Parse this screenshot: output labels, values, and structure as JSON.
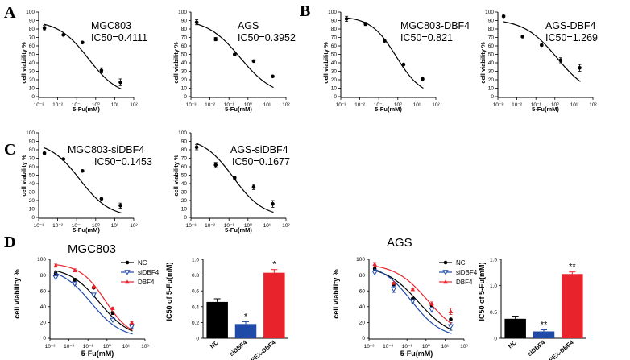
{
  "colors": {
    "black": "#000000",
    "blue": "#1f4aa8",
    "red": "#e8232b"
  },
  "panel_labels": {
    "A": "A",
    "B": "B",
    "C": "C",
    "D": "D"
  },
  "chart_data": [
    {
      "id": "A1",
      "type": "line",
      "title": "MGC803",
      "subtitle": "IC50=0.4111",
      "xlabel": "5-Fu(mM)",
      "ylabel": "cell viability %",
      "xscale": "log",
      "xlim": [
        0.001,
        100
      ],
      "ylim": [
        0,
        100
      ],
      "ic50": 0.4111,
      "hill": 0.55,
      "top": 90,
      "yticks": [
        0,
        10,
        20,
        30,
        40,
        50,
        60,
        70,
        80,
        90,
        100
      ],
      "xtick_labels": [
        "10⁻³",
        "10⁻²",
        "10⁻¹",
        "10⁰",
        "10¹",
        "10²"
      ],
      "points": [
        {
          "x": 0.002,
          "y": 81,
          "err": 3
        },
        {
          "x": 0.02,
          "y": 73,
          "err": 1
        },
        {
          "x": 0.2,
          "y": 64,
          "err": 1
        },
        {
          "x": 2,
          "y": 31,
          "err": 3
        },
        {
          "x": 20,
          "y": 17,
          "err": 4
        }
      ]
    },
    {
      "id": "A2",
      "type": "line",
      "title": "AGS",
      "subtitle": "IC50=0.3952",
      "xlabel": "5-Fu(mM)",
      "ylabel": "cell viability %",
      "xscale": "log",
      "xlim": [
        0.001,
        100
      ],
      "ylim": [
        0,
        100
      ],
      "ic50": 0.3952,
      "hill": 0.5,
      "top": 92,
      "yticks": [
        0,
        10,
        20,
        30,
        40,
        50,
        60,
        70,
        80,
        90,
        100
      ],
      "xtick_labels": [
        "10⁻³",
        "10⁻²",
        "10⁻¹",
        "10⁰",
        "10¹",
        "10²"
      ],
      "points": [
        {
          "x": 0.002,
          "y": 88,
          "err": 3
        },
        {
          "x": 0.02,
          "y": 68,
          "err": 2
        },
        {
          "x": 0.2,
          "y": 50,
          "err": 1
        },
        {
          "x": 2,
          "y": 42,
          "err": 1
        },
        {
          "x": 20,
          "y": 24,
          "err": 1
        }
      ]
    },
    {
      "id": "B1",
      "type": "line",
      "title": "MGC803-DBF4",
      "subtitle": "IC50=0.821",
      "xlabel": "5-Fu(mM)",
      "ylabel": "cell viability %",
      "xscale": "log",
      "xlim": [
        0.001,
        100
      ],
      "ylim": [
        0,
        100
      ],
      "ic50": 0.821,
      "hill": 0.65,
      "top": 95,
      "yticks": [
        0,
        10,
        20,
        30,
        40,
        50,
        60,
        70,
        80,
        90,
        100
      ],
      "xtick_labels": [
        "10⁻³",
        "10⁻²",
        "10⁻¹",
        "10⁰",
        "10¹",
        "10²"
      ],
      "points": [
        {
          "x": 0.002,
          "y": 92,
          "err": 3
        },
        {
          "x": 0.02,
          "y": 86,
          "err": 2
        },
        {
          "x": 0.2,
          "y": 66,
          "err": 1
        },
        {
          "x": 2,
          "y": 38,
          "err": 1
        },
        {
          "x": 20,
          "y": 21,
          "err": 1
        }
      ]
    },
    {
      "id": "B2",
      "type": "line",
      "title": "AGS-DBF4",
      "subtitle": "IC50=1.269",
      "xlabel": "5-Fu(mM)",
      "ylabel": "cell viability %",
      "xscale": "log",
      "xlim": [
        0.001,
        100
      ],
      "ylim": [
        0,
        100
      ],
      "ic50": 1.269,
      "hill": 0.5,
      "top": 92,
      "yticks": [
        0,
        10,
        20,
        30,
        40,
        50,
        60,
        70,
        80,
        90,
        100
      ],
      "xtick_labels": [
        "10⁻³",
        "10⁻²",
        "10⁻¹",
        "10⁰",
        "10¹",
        "10²"
      ],
      "points": [
        {
          "x": 0.002,
          "y": 95,
          "err": 1
        },
        {
          "x": 0.02,
          "y": 71,
          "err": 1
        },
        {
          "x": 0.2,
          "y": 61,
          "err": 1
        },
        {
          "x": 2,
          "y": 43,
          "err": 3
        },
        {
          "x": 20,
          "y": 34,
          "err": 4
        }
      ]
    },
    {
      "id": "C1",
      "type": "line",
      "title": "MGC803-siDBF4",
      "subtitle": "IC50=0.1453",
      "xlabel": "5-Fu(mM)",
      "ylabel": "cell viability %",
      "xscale": "log",
      "xlim": [
        0.001,
        100
      ],
      "ylim": [
        0,
        100
      ],
      "ic50": 0.1453,
      "hill": 0.55,
      "top": 90,
      "yticks": [
        0,
        10,
        20,
        30,
        40,
        50,
        60,
        70,
        80,
        90,
        100
      ],
      "xtick_labels": [
        "10⁻³",
        "10⁻²",
        "10⁻¹",
        "10⁰",
        "10¹",
        "10²"
      ],
      "points": [
        {
          "x": 0.002,
          "y": 76,
          "err": 1
        },
        {
          "x": 0.02,
          "y": 69,
          "err": 1
        },
        {
          "x": 0.2,
          "y": 55,
          "err": 1
        },
        {
          "x": 2,
          "y": 22,
          "err": 1
        },
        {
          "x": 20,
          "y": 14,
          "err": 3
        }
      ]
    },
    {
      "id": "C2",
      "type": "line",
      "title": "AGS-siDBF4",
      "subtitle": "IC50=0.1677",
      "xlabel": "5-Fu(mM)",
      "ylabel": "cell viability %",
      "xscale": "log",
      "xlim": [
        0.001,
        100
      ],
      "ylim": [
        0,
        100
      ],
      "ic50": 0.1677,
      "hill": 0.55,
      "top": 95,
      "yticks": [
        0,
        10,
        20,
        30,
        40,
        50,
        60,
        70,
        80,
        90,
        100
      ],
      "xtick_labels": [
        "10⁻³",
        "10⁻²",
        "10⁻¹",
        "10⁰",
        "10¹",
        "10²"
      ],
      "points": [
        {
          "x": 0.002,
          "y": 83,
          "err": 3
        },
        {
          "x": 0.02,
          "y": 62,
          "err": 3
        },
        {
          "x": 0.2,
          "y": 47,
          "err": 2
        },
        {
          "x": 2,
          "y": 36,
          "err": 3
        },
        {
          "x": 20,
          "y": 16,
          "err": 4
        }
      ]
    },
    {
      "id": "D1",
      "type": "line",
      "title": "MGC803",
      "xlabel": "5-Fu(mM)",
      "ylabel": "cell viability %",
      "xscale": "log",
      "xlim": [
        0.001,
        100
      ],
      "ylim": [
        0,
        100
      ],
      "yticks": [
        0,
        20,
        40,
        60,
        80,
        100
      ],
      "xtick_labels": [
        "10⁻³",
        "10⁻²",
        "10⁻¹",
        "10⁰",
        "10¹",
        "10²"
      ],
      "legend": "top-right",
      "series": [
        {
          "name": "NC",
          "color": "#000000",
          "marker": "circle",
          "ic50": 0.4111,
          "hill": 0.55,
          "top": 90,
          "points": [
            {
              "x": 0.002,
              "y": 82,
              "err": 2
            },
            {
              "x": 0.02,
              "y": 74,
              "err": 2
            },
            {
              "x": 0.2,
              "y": 64,
              "err": 1
            },
            {
              "x": 2,
              "y": 32,
              "err": 2
            },
            {
              "x": 20,
              "y": 16,
              "err": 3
            }
          ]
        },
        {
          "name": "siDBF4",
          "color": "#1f4aa8",
          "marker": "triangle-down",
          "ic50": 0.1453,
          "hill": 0.55,
          "top": 90,
          "points": [
            {
              "x": 0.002,
              "y": 77,
              "err": 2
            },
            {
              "x": 0.02,
              "y": 69,
              "err": 1
            },
            {
              "x": 0.2,
              "y": 55,
              "err": 1
            },
            {
              "x": 2,
              "y": 23,
              "err": 1
            },
            {
              "x": 20,
              "y": 15,
              "err": 2
            }
          ]
        },
        {
          "name": "DBF4",
          "color": "#e8232b",
          "marker": "triangle-up",
          "ic50": 0.821,
          "hill": 0.65,
          "top": 95,
          "points": [
            {
              "x": 0.002,
              "y": 92,
              "err": 2
            },
            {
              "x": 0.02,
              "y": 86,
              "err": 2
            },
            {
              "x": 0.2,
              "y": 65,
              "err": 1
            },
            {
              "x": 2,
              "y": 38,
              "err": 1
            },
            {
              "x": 20,
              "y": 20,
              "err": 1
            }
          ]
        }
      ]
    },
    {
      "id": "D2",
      "type": "bar",
      "ylabel": "IC50 of 5-Fu(mM)",
      "categories": [
        "NC",
        "siDBF4",
        "PEX-DBF4"
      ],
      "values": [
        0.46,
        0.18,
        0.83
      ],
      "errors": [
        0.04,
        0.03,
        0.04
      ],
      "annotations": [
        "",
        "*",
        "*"
      ],
      "ylim": [
        0,
        1.0
      ],
      "yticks": [
        0.0,
        0.2,
        0.4,
        0.6,
        0.8,
        1.0
      ],
      "ytick_labels": [
        "0",
        "0.2",
        "0.4",
        "0.6",
        "0.8",
        "1.0"
      ],
      "colors": [
        "#000000",
        "#1f4aa8",
        "#e8232b"
      ]
    },
    {
      "id": "D3",
      "type": "line",
      "title": "AGS",
      "xlabel": "5-Fu(mM)",
      "ylabel": "cell viability %",
      "xscale": "log",
      "xlim": [
        0.001,
        100
      ],
      "ylim": [
        0,
        100
      ],
      "yticks": [
        0,
        20,
        40,
        60,
        80,
        100
      ],
      "xtick_labels": [
        "10⁻³",
        "10⁻²",
        "10⁻¹",
        "10⁰",
        "10¹",
        "10²"
      ],
      "legend": "top-right",
      "series": [
        {
          "name": "NC",
          "color": "#000000",
          "marker": "circle",
          "ic50": 0.3952,
          "hill": 0.5,
          "top": 92,
          "points": [
            {
              "x": 0.002,
              "y": 88,
              "err": 2
            },
            {
              "x": 0.02,
              "y": 68,
              "err": 2
            },
            {
              "x": 0.2,
              "y": 50,
              "err": 1
            },
            {
              "x": 2,
              "y": 42,
              "err": 2
            },
            {
              "x": 20,
              "y": 24,
              "err": 1
            }
          ]
        },
        {
          "name": "siDBF4",
          "color": "#1f4aa8",
          "marker": "triangle-down",
          "ic50": 0.1677,
          "hill": 0.55,
          "top": 95,
          "points": [
            {
              "x": 0.002,
              "y": 83,
              "err": 3
            },
            {
              "x": 0.02,
              "y": 62,
              "err": 4
            },
            {
              "x": 0.2,
              "y": 47,
              "err": 2
            },
            {
              "x": 2,
              "y": 36,
              "err": 3
            },
            {
              "x": 20,
              "y": 15,
              "err": 5
            }
          ]
        },
        {
          "name": "DBF4",
          "color": "#e8232b",
          "marker": "triangle-up",
          "ic50": 1.269,
          "hill": 0.5,
          "top": 95,
          "points": [
            {
              "x": 0.002,
              "y": 94,
              "err": 2
            },
            {
              "x": 0.02,
              "y": 70,
              "err": 1
            },
            {
              "x": 0.2,
              "y": 62,
              "err": 1
            },
            {
              "x": 2,
              "y": 44,
              "err": 2
            },
            {
              "x": 20,
              "y": 34,
              "err": 4
            }
          ]
        }
      ]
    },
    {
      "id": "D4",
      "type": "bar",
      "ylabel": "IC50 of 5-Fu(mM)",
      "categories": [
        "NC",
        "siDBF4",
        "PEX-DBF4"
      ],
      "values": [
        0.37,
        0.13,
        1.22
      ],
      "errors": [
        0.05,
        0.03,
        0.04
      ],
      "annotations": [
        "",
        "**",
        "**"
      ],
      "ylim": [
        0,
        1.5
      ],
      "yticks": [
        0.0,
        0.5,
        1.0,
        1.5
      ],
      "ytick_labels": [
        "0",
        "0.5",
        "1.0",
        "1.5"
      ],
      "colors": [
        "#000000",
        "#1f4aa8",
        "#e8232b"
      ]
    }
  ]
}
